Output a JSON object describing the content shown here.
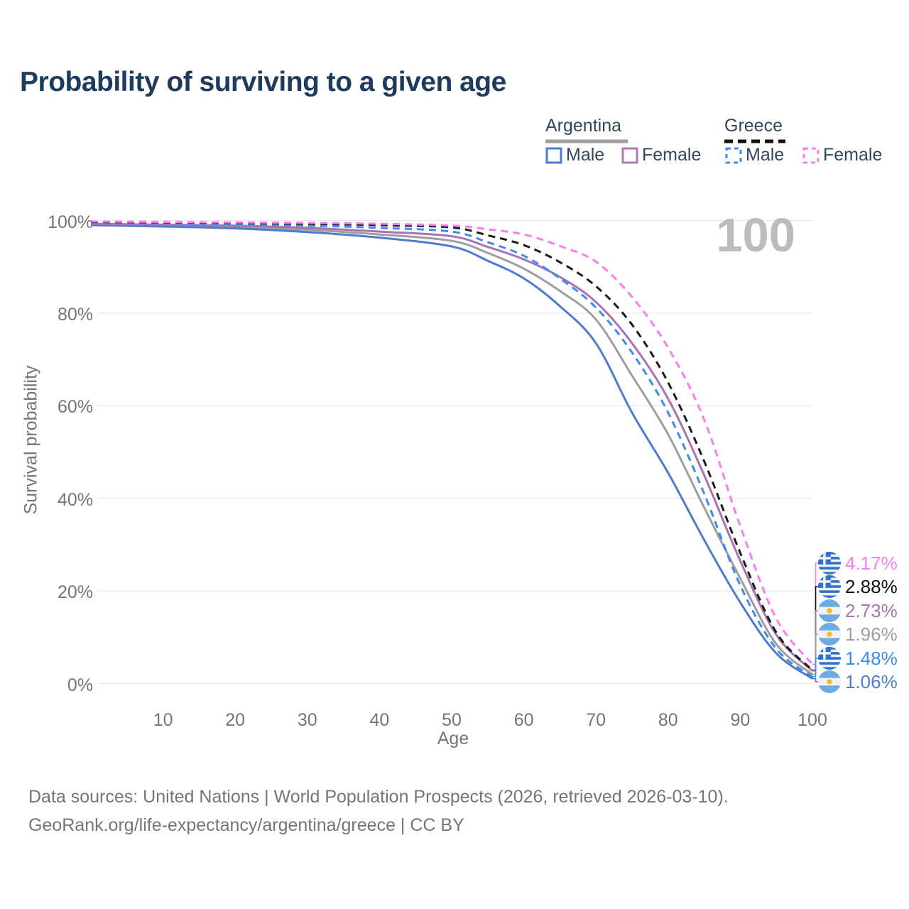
{
  "title": "Probability of surviving to a given age",
  "watermark": "100",
  "legend": {
    "groups": [
      {
        "label": "Argentina",
        "style": "solid",
        "underline_color": "#9e9e9e",
        "items": [
          {
            "label": "Male",
            "color": "#4f7bce"
          },
          {
            "label": "Female",
            "color": "#b178b8"
          }
        ]
      },
      {
        "label": "Greece",
        "style": "dashed",
        "underline_color": "#111111",
        "items": [
          {
            "label": "Male",
            "color": "#3d8bf2"
          },
          {
            "label": "Female",
            "color": "#fb7df1"
          }
        ]
      }
    ]
  },
  "axes": {
    "y_title": "Survival probability",
    "x_title": "Age",
    "y_ticks": [
      "100%",
      "80%",
      "60%",
      "40%",
      "20%",
      "0%"
    ],
    "y_tick_values": [
      100,
      80,
      60,
      40,
      20,
      0
    ],
    "x_ticks": [
      "10",
      "20",
      "30",
      "40",
      "50",
      "60",
      "70",
      "80",
      "90",
      "100"
    ],
    "x_tick_values": [
      10,
      20,
      30,
      40,
      50,
      60,
      70,
      80,
      90,
      100
    ]
  },
  "chart_data": {
    "type": "line",
    "title": "Probability of surviving to a given age",
    "xlabel": "Age",
    "ylabel": "Survival probability",
    "xlim": [
      0,
      100
    ],
    "ylim": [
      0,
      100
    ],
    "grid": "horizontal",
    "x": [
      0,
      10,
      20,
      30,
      40,
      50,
      55,
      60,
      65,
      70,
      75,
      80,
      85,
      90,
      95,
      100
    ],
    "series": [
      {
        "name": "Argentina Both",
        "country": "argentina",
        "sex": "both",
        "color": "#9e9e9e",
        "dash": false,
        "values": [
          99.2,
          98.9,
          98.6,
          98.0,
          97.0,
          95.6,
          93.0,
          89.6,
          84.8,
          78.6,
          66.5,
          53.8,
          38.0,
          22.7,
          8.5,
          1.96
        ]
      },
      {
        "name": "Argentina Male",
        "country": "argentina",
        "sex": "male",
        "color": "#4f7bce",
        "dash": false,
        "values": [
          99.0,
          98.7,
          98.3,
          97.5,
          96.3,
          94.4,
          91.3,
          87.5,
          81.5,
          73.5,
          58.5,
          45.5,
          31.0,
          17.5,
          6.5,
          1.06
        ]
      },
      {
        "name": "Argentina Female",
        "country": "argentina",
        "sex": "female",
        "color": "#a973b3",
        "dash": false,
        "values": [
          99.3,
          99.1,
          98.9,
          98.4,
          97.6,
          96.6,
          94.3,
          91.6,
          87.8,
          82.4,
          73.5,
          61.5,
          45.0,
          26.5,
          10.5,
          2.73
        ]
      },
      {
        "name": "Greece Male",
        "country": "greece",
        "sex": "male",
        "color": "#3d8bf2",
        "dash": true,
        "values": [
          99.5,
          99.4,
          99.2,
          98.9,
          98.4,
          97.6,
          95.3,
          92.4,
          87.5,
          81.2,
          71.5,
          58.5,
          41.0,
          21.2,
          7.5,
          1.48
        ]
      },
      {
        "name": "Greece Both",
        "country": "greece",
        "sex": "both",
        "color": "#1b1b1b",
        "dash": true,
        "values": [
          99.7,
          99.6,
          99.5,
          99.3,
          99.0,
          98.5,
          96.8,
          94.7,
          91.0,
          85.8,
          77.5,
          65.0,
          48.0,
          28.2,
          11.0,
          2.88
        ]
      },
      {
        "name": "Greece Female",
        "country": "greece",
        "sex": "female",
        "color": "#fb7df1",
        "dash": true,
        "values": [
          99.8,
          99.7,
          99.6,
          99.5,
          99.3,
          98.9,
          98.1,
          97.0,
          94.5,
          91.1,
          83.5,
          72.5,
          57.0,
          34.0,
          14.0,
          4.17
        ]
      }
    ]
  },
  "end_labels": [
    {
      "flag": "greece",
      "value": "4.17%",
      "color": "#fb7df1",
      "p": 4.17
    },
    {
      "flag": "greece",
      "value": "2.88%",
      "color": "#111111",
      "p": 2.88
    },
    {
      "flag": "argentina",
      "value": "2.73%",
      "color": "#a973b3",
      "p": 2.73
    },
    {
      "flag": "argentina",
      "value": "1.96%",
      "color": "#9e9e9e",
      "p": 1.96
    },
    {
      "flag": "greece",
      "value": "1.48%",
      "color": "#3d8bf2",
      "p": 1.48
    },
    {
      "flag": "argentina",
      "value": "1.06%",
      "color": "#4f7bce",
      "p": 1.06
    }
  ],
  "icons": {
    "greece_flag": {
      "blue": "#2f72c9",
      "white": "#f2f2f2"
    },
    "argentina_flag": {
      "blue": "#6fabe0",
      "white": "#f2f2f2",
      "sun": "#f2c01e"
    }
  },
  "colors": {
    "grid": "#e8e8e8",
    "axis_text": "#757575",
    "title_text": "#1e3a5c",
    "watermark": "#bcbcbc",
    "legend_text": "#33475b",
    "footer_text": "#757575"
  },
  "footer": {
    "line1": "Data sources: United Nations | World Population Prospects (2026, retrieved 2026-03-10).",
    "line2": "GeoRank.org/life-expectancy/argentina/greece | CC BY"
  }
}
